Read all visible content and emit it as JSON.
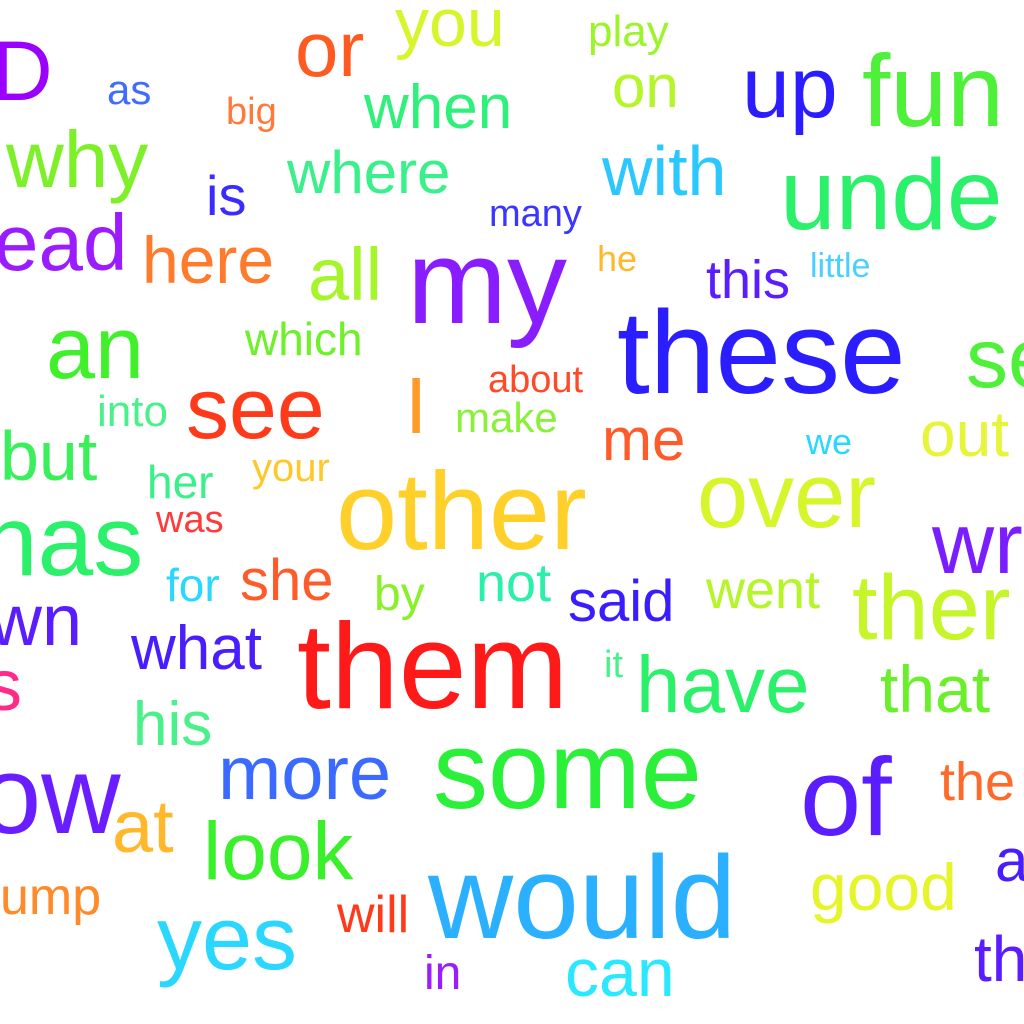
{
  "word_cloud": {
    "words": [
      {
        "text": "D",
        "color": "#9b00ff"
      },
      {
        "text": "or",
        "color": "#ff5a1f"
      },
      {
        "text": "you",
        "color": "#d6f52a"
      },
      {
        "text": "play",
        "color": "#9cf52a"
      },
      {
        "text": "as",
        "color": "#3f6bff"
      },
      {
        "text": "big",
        "color": "#ff7a3a"
      },
      {
        "text": "when",
        "color": "#2ef07a"
      },
      {
        "text": "on",
        "color": "#b6f52a"
      },
      {
        "text": "up",
        "color": "#2b1dff"
      },
      {
        "text": "fun",
        "color": "#4ff03a"
      },
      {
        "text": "why",
        "color": "#7ef02a"
      },
      {
        "text": "is",
        "color": "#3a2bff"
      },
      {
        "text": "where",
        "color": "#3af08a"
      },
      {
        "text": "with",
        "color": "#2ac8ff"
      },
      {
        "text": "many",
        "color": "#3a35ff"
      },
      {
        "text": "unde",
        "color": "#2af06a"
      },
      {
        "text": "ead",
        "color": "#9b1dff"
      },
      {
        "text": "here",
        "color": "#ff7a2a"
      },
      {
        "text": "all",
        "color": "#a6f52a"
      },
      {
        "text": "my",
        "color": "#8a1dff"
      },
      {
        "text": "he",
        "color": "#ffb82a"
      },
      {
        "text": "this",
        "color": "#5a1dff"
      },
      {
        "text": "little",
        "color": "#4ad0ff"
      },
      {
        "text": "an",
        "color": "#3ff02a"
      },
      {
        "text": "which",
        "color": "#6ef02a"
      },
      {
        "text": "these",
        "color": "#2a1dff"
      },
      {
        "text": "se",
        "color": "#4ff03a"
      },
      {
        "text": "into",
        "color": "#4af08a"
      },
      {
        "text": "see",
        "color": "#ff3a1a"
      },
      {
        "text": "I",
        "color": "#ff9a2a"
      },
      {
        "text": "about",
        "color": "#ff4a2a"
      },
      {
        "text": "make",
        "color": "#8af03a"
      },
      {
        "text": "me",
        "color": "#ff5a2a"
      },
      {
        "text": "we",
        "color": "#2ad8ff"
      },
      {
        "text": "out",
        "color": "#e6f53a"
      },
      {
        "text": "but",
        "color": "#3af05a"
      },
      {
        "text": "her",
        "color": "#3af08a"
      },
      {
        "text": "your",
        "color": "#ffc82a"
      },
      {
        "text": "other",
        "color": "#ffd02a"
      },
      {
        "text": "over",
        "color": "#d6f52a"
      },
      {
        "text": "has",
        "color": "#2af06a"
      },
      {
        "text": "was",
        "color": "#ff3a3a"
      },
      {
        "text": "wr",
        "color": "#7a1dff"
      },
      {
        "text": "for",
        "color": "#2ad8ff"
      },
      {
        "text": "she",
        "color": "#ff5a2a"
      },
      {
        "text": "by",
        "color": "#8af02a"
      },
      {
        "text": "not",
        "color": "#2af0aa"
      },
      {
        "text": "said",
        "color": "#3a1dff"
      },
      {
        "text": "went",
        "color": "#b6f52a"
      },
      {
        "text": "ther",
        "color": "#c6f52a"
      },
      {
        "text": "wn",
        "color": "#5a1dff"
      },
      {
        "text": "what",
        "color": "#4a1dff"
      },
      {
        "text": "them",
        "color": "#ff1a1a"
      },
      {
        "text": "it",
        "color": "#4af08a"
      },
      {
        "text": "have",
        "color": "#2af06a"
      },
      {
        "text": "that",
        "color": "#6af02a"
      },
      {
        "text": "s",
        "color": "#ff2a8a"
      },
      {
        "text": "his",
        "color": "#4af08a"
      },
      {
        "text": "ow",
        "color": "#6a1dff"
      },
      {
        "text": "more",
        "color": "#3a6aff"
      },
      {
        "text": "some",
        "color": "#2af03a"
      },
      {
        "text": "of",
        "color": "#5a1dff"
      },
      {
        "text": "the",
        "color": "#ff6a2a"
      },
      {
        "text": "at",
        "color": "#ffb82a"
      },
      {
        "text": "look",
        "color": "#3af02a"
      },
      {
        "text": "good",
        "color": "#e6f52a"
      },
      {
        "text": "a",
        "color": "#4a1dff"
      },
      {
        "text": "ump",
        "color": "#ff8a2a"
      },
      {
        "text": "yes",
        "color": "#2ad8ff"
      },
      {
        "text": "will",
        "color": "#ff3a1a"
      },
      {
        "text": "would",
        "color": "#2ab0ff"
      },
      {
        "text": "in",
        "color": "#9a1dff"
      },
      {
        "text": "can",
        "color": "#2ae8ff"
      },
      {
        "text": "th",
        "color": "#5a1dff"
      }
    ]
  }
}
